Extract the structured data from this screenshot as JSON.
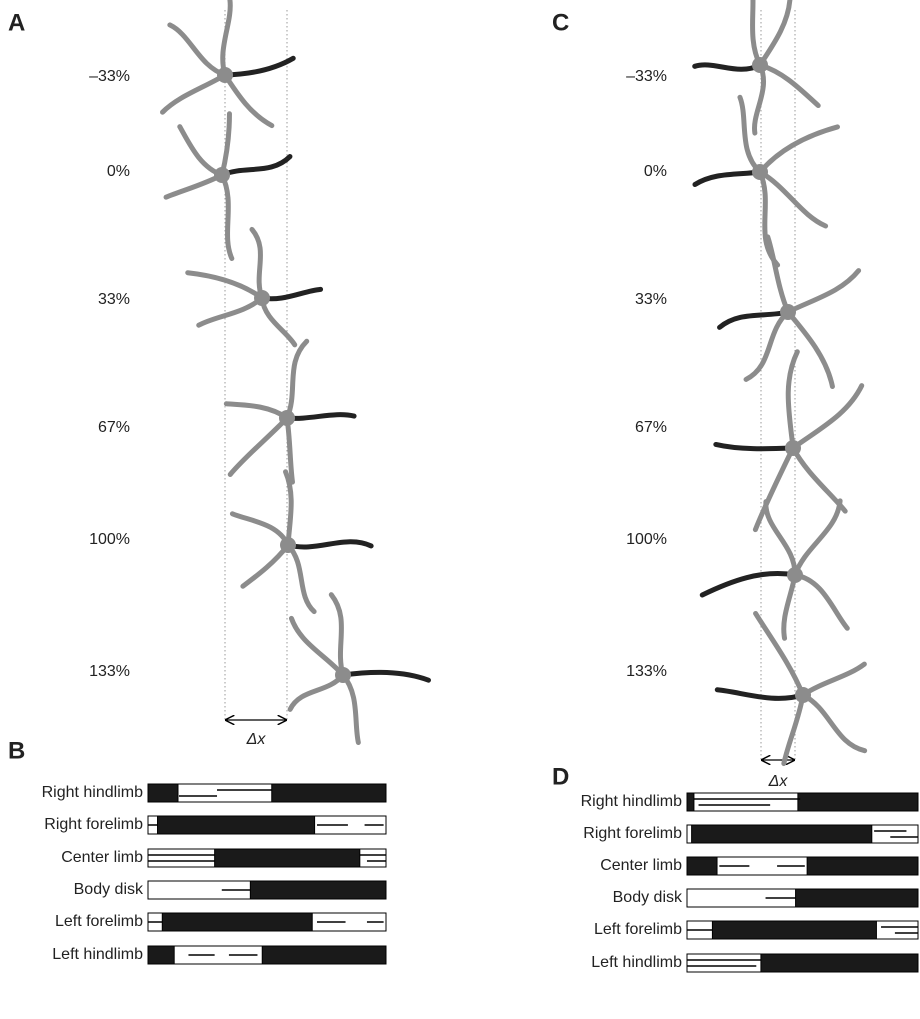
{
  "panels": {
    "A": {
      "label": "A",
      "frames": [
        "–33%",
        "0%",
        "33%",
        "67%",
        "100%",
        "133%"
      ],
      "delta": "Δx"
    },
    "B": {
      "label": "B",
      "rows": [
        {
          "name": "Right hindlimb",
          "white": [
            [
              12.6,
              52
            ]
          ],
          "lines": [
            [
              13,
              29,
              0.67
            ],
            [
              29,
              52,
              0.33
            ]
          ]
        },
        {
          "name": "Right forelimb",
          "white": [
            [
              0,
              4
            ],
            [
              70,
              100
            ]
          ],
          "lines": [
            [
              0,
              4,
              0.5
            ],
            [
              71,
              84,
              0.5
            ],
            [
              91,
              99,
              0.5
            ]
          ]
        },
        {
          "name": "Center limb",
          "white": [
            [
              0,
              28
            ],
            [
              89,
              100
            ]
          ],
          "lines": [
            [
              0,
              28,
              0.33
            ],
            [
              0,
              28,
              0.67
            ],
            [
              89,
              100,
              0.33
            ],
            [
              92,
              100,
              0.67
            ]
          ]
        },
        {
          "name": "Body disk",
          "white": [
            [
              0,
              43
            ]
          ],
          "lines": [
            [
              31,
              43,
              0.5
            ]
          ]
        },
        {
          "name": "Left forelimb",
          "white": [
            [
              0,
              6
            ],
            [
              69,
              100
            ]
          ],
          "lines": [
            [
              0,
              6,
              0.5
            ],
            [
              71,
              83,
              0.5
            ],
            [
              92,
              99,
              0.5
            ]
          ]
        },
        {
          "name": "Left hindlimb",
          "white": [
            [
              11,
              48
            ]
          ],
          "lines": [
            [
              17,
              28,
              0.5
            ],
            [
              34,
              46,
              0.5
            ]
          ]
        }
      ]
    },
    "C": {
      "label": "C",
      "frames": [
        "–33%",
        "0%",
        "33%",
        "67%",
        "100%",
        "133%"
      ],
      "delta": "Δx"
    },
    "D": {
      "label": "D",
      "rows": [
        {
          "name": "Right hindlimb",
          "white": [
            [
              3,
              48
            ]
          ],
          "lines": [
            [
              3,
              49,
              0.33
            ],
            [
              5,
              36,
              0.67
            ]
          ]
        },
        {
          "name": "Right forelimb",
          "white": [
            [
              0,
              2
            ],
            [
              80,
              100
            ]
          ],
          "lines": [
            [
              81,
              95,
              0.33
            ],
            [
              88,
              100,
              0.67
            ]
          ]
        },
        {
          "name": "Center limb",
          "white": [
            [
              13,
              52
            ]
          ],
          "lines": [
            [
              14,
              27,
              0.5
            ],
            [
              39,
              51,
              0.5
            ]
          ]
        },
        {
          "name": "Body disk",
          "white": [
            [
              0,
              47
            ]
          ],
          "lines": [
            [
              34,
              47,
              0.5
            ]
          ]
        },
        {
          "name": "Left forelimb",
          "white": [
            [
              0,
              11
            ],
            [
              82,
              100
            ]
          ],
          "lines": [
            [
              0,
              11,
              0.5
            ],
            [
              84,
              100,
              0.33
            ],
            [
              90,
              100,
              0.67
            ]
          ]
        },
        {
          "name": "Left hindlimb",
          "white": [
            [
              0,
              32
            ]
          ],
          "lines": [
            [
              0,
              32,
              0.33
            ],
            [
              0,
              30,
              0.67
            ]
          ]
        }
      ]
    }
  }
}
